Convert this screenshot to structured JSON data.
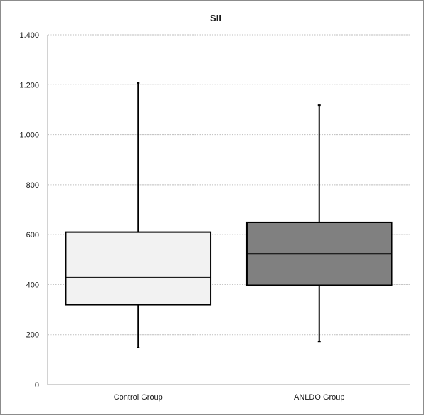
{
  "chart_data": {
    "type": "boxplot",
    "title": "SII",
    "xlabel": "",
    "ylabel": "",
    "ylim": [
      0,
      1400
    ],
    "yticks": [
      0,
      200,
      400,
      600,
      800,
      1000,
      1200,
      1400
    ],
    "ytick_labels": [
      "0",
      "200",
      "400",
      "600",
      "800",
      "1.000",
      "1.200",
      "1.400"
    ],
    "grid": true,
    "categories": [
      "Control Group",
      "ANLDO Group"
    ],
    "boxes": [
      {
        "category": "Control Group",
        "min": 148,
        "q1": 320,
        "median": 430,
        "q3": 610,
        "max": 1207,
        "fill": "#f2f2f2"
      },
      {
        "category": "ANLDO Group",
        "min": 173,
        "q1": 397,
        "median": 523,
        "q3": 649,
        "max": 1118,
        "fill": "#808080"
      }
    ]
  },
  "colors": {
    "grid": "#bfbfbf",
    "axis": "#a6a6a6",
    "outline": "#000000"
  }
}
